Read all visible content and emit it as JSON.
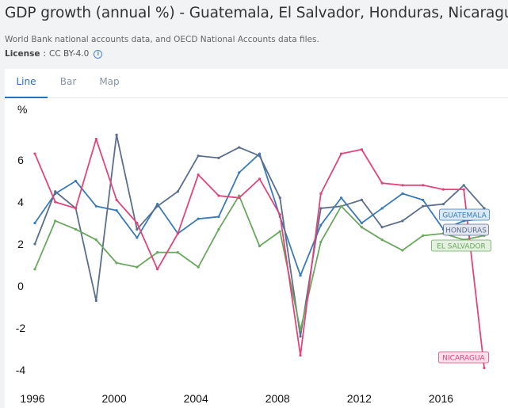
{
  "header": {
    "title": "GDP growth (annual %) - Guatemala, El Salvador, Honduras, Nicaragua",
    "subtitle": "World Bank national accounts data, and OECD National Accounts data files.",
    "license_label": "License",
    "license_separator": ":",
    "license_value": "CC BY-4.0",
    "info_icon": "info-circle-icon"
  },
  "tabs": [
    {
      "label": "Line",
      "active": true
    },
    {
      "label": "Bar",
      "active": false
    },
    {
      "label": "Map",
      "active": false
    }
  ],
  "chart_data": {
    "type": "line",
    "title": "GDP growth (annual %) - Guatemala, El Salvador, Honduras, Nicaragua",
    "ylabel": "%",
    "xlabel": "",
    "ylim": [
      -4.1,
      7.8
    ],
    "yticks": [
      -4,
      -2,
      0,
      2,
      4,
      6
    ],
    "xticks": [
      1996,
      2000,
      2004,
      2008,
      2012,
      2016
    ],
    "grid": false,
    "x": [
      1996,
      1997,
      1998,
      1999,
      2000,
      2001,
      2002,
      2003,
      2004,
      2005,
      2006,
      2007,
      2008,
      2009,
      2010,
      2011,
      2012,
      2013,
      2014,
      2015,
      2016,
      2017,
      2018
    ],
    "series": [
      {
        "name": "GUATEMALA",
        "color": "#3a7bb5",
        "label_bg": "#dbe8f5",
        "values": [
          3.0,
          4.4,
          5.0,
          3.8,
          3.6,
          2.3,
          3.9,
          2.5,
          3.2,
          3.3,
          5.4,
          6.3,
          3.3,
          0.5,
          2.9,
          4.2,
          3.0,
          3.7,
          4.4,
          4.1,
          2.7,
          3.1,
          3.2
        ]
      },
      {
        "name": "HONDURAS",
        "color": "#5b6f8c",
        "label_bg": "#e3e6ef",
        "values": [
          2.0,
          4.5,
          3.7,
          -0.7,
          7.2,
          2.7,
          3.8,
          4.5,
          6.2,
          6.1,
          6.6,
          6.2,
          4.2,
          -2.4,
          3.7,
          3.8,
          4.1,
          2.8,
          3.1,
          3.8,
          3.9,
          4.8,
          3.7
        ]
      },
      {
        "name": "EL SALVADOR",
        "color": "#6aa85f",
        "label_bg": "#e4f1e0",
        "values": [
          0.8,
          3.1,
          2.7,
          2.2,
          1.1,
          0.9,
          1.6,
          1.6,
          0.9,
          2.7,
          4.3,
          1.9,
          2.6,
          -2.1,
          2.1,
          3.8,
          2.8,
          2.2,
          1.7,
          2.4,
          2.5,
          2.2,
          2.4
        ]
      },
      {
        "name": "NICARAGUA",
        "color": "#e0457b",
        "label_bg": "#fbe0ea",
        "values": [
          6.3,
          4.0,
          3.7,
          7.0,
          4.1,
          3.0,
          0.8,
          2.5,
          5.3,
          4.3,
          4.2,
          5.1,
          3.4,
          -3.3,
          4.4,
          6.3,
          6.5,
          4.9,
          4.8,
          4.8,
          4.6,
          4.6,
          -3.9
        ]
      }
    ]
  }
}
